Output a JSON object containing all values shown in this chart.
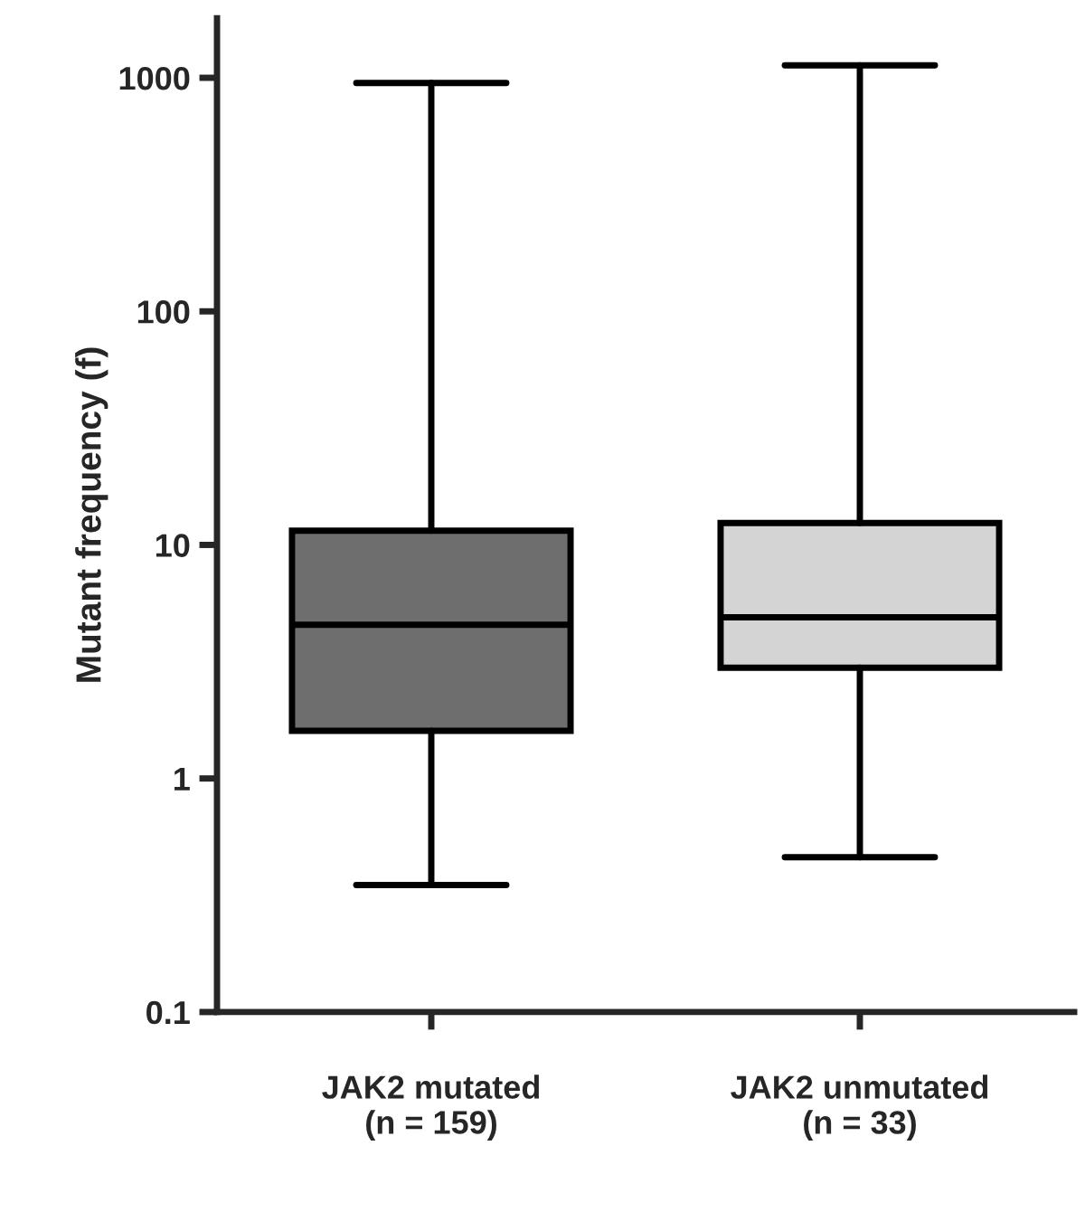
{
  "chart_data": {
    "type": "box",
    "ylabel": "Mutant frequency (f)",
    "categories": [
      "JAK2 mutated\n(n = 159)",
      "JAK2 unmutated\n(n = 33)"
    ],
    "boxes": [
      {
        "low": 0.35,
        "q1": 1.6,
        "median": 4.55,
        "q3": 11.5,
        "high": 950
      },
      {
        "low": 0.46,
        "q1": 2.98,
        "median": 4.9,
        "q3": 12.4,
        "high": 1130
      }
    ],
    "colors": [
      "#6e6e6e",
      "#d4d4d4"
    ],
    "log": true,
    "ylim": [
      0.1,
      1800
    ],
    "yticks": [
      0.1,
      1,
      10,
      100,
      1000
    ],
    "grid": false
  }
}
